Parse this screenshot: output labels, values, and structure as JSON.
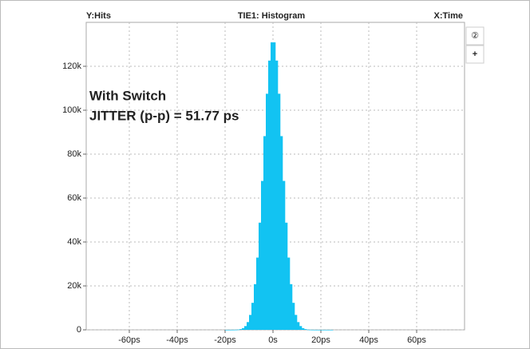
{
  "chart_data": {
    "type": "histogram",
    "title": "TIE1: Histogram",
    "y_label": "Y:Hits",
    "x_label": "X:Time",
    "annotations": [
      "With Switch",
      "JITTER (p-p) = 51.77 ps"
    ],
    "color": "#12c3f2",
    "bins": [
      -20,
      -19,
      -18,
      -17,
      -16,
      -15,
      -14,
      -13,
      -12,
      -11,
      -10,
      -9,
      -8,
      -7,
      -6,
      -5,
      -4,
      -3,
      -2,
      -1,
      0,
      1,
      2,
      3,
      4,
      5,
      6,
      7,
      8,
      9,
      10,
      11,
      12,
      13,
      14,
      15,
      16,
      17,
      18,
      19,
      20,
      21,
      22,
      23,
      24,
      25
    ],
    "counts": [
      2,
      4,
      8,
      18,
      49,
      131,
      330,
      776,
      1710,
      3520,
      6790,
      12300,
      20800,
      32900,
      48800,
      67800,
      88200,
      107500,
      122600,
      130900,
      130900,
      122600,
      107500,
      88200,
      67800,
      48800,
      32900,
      20800,
      12300,
      6790,
      3520,
      1710,
      776,
      330,
      131,
      49,
      18,
      8,
      4,
      3,
      2,
      2,
      1,
      1,
      1
    ],
    "xlim": [
      -78,
      80
    ],
    "ylim": [
      0,
      140000
    ],
    "xticks": [
      {
        "value": -60,
        "label": "-60ps"
      },
      {
        "value": -40,
        "label": "-40ps"
      },
      {
        "value": -20,
        "label": "-20ps"
      },
      {
        "value": 0,
        "label": "0s"
      },
      {
        "value": 20,
        "label": "20ps"
      },
      {
        "value": 40,
        "label": "40ps"
      },
      {
        "value": 60,
        "label": "60ps"
      }
    ],
    "yticks": [
      0,
      {
        "value": 20000,
        "label": "20k"
      },
      {
        "value": 40000,
        "label": "40k"
      },
      {
        "value": 60000,
        "label": "60k"
      },
      {
        "value": 80000,
        "label": "80k"
      },
      {
        "value": 100000,
        "label": "100k"
      },
      {
        "value": 120000,
        "label": "120k"
      }
    ],
    "grid": true
  },
  "toolbar": [
    "②",
    "+"
  ]
}
